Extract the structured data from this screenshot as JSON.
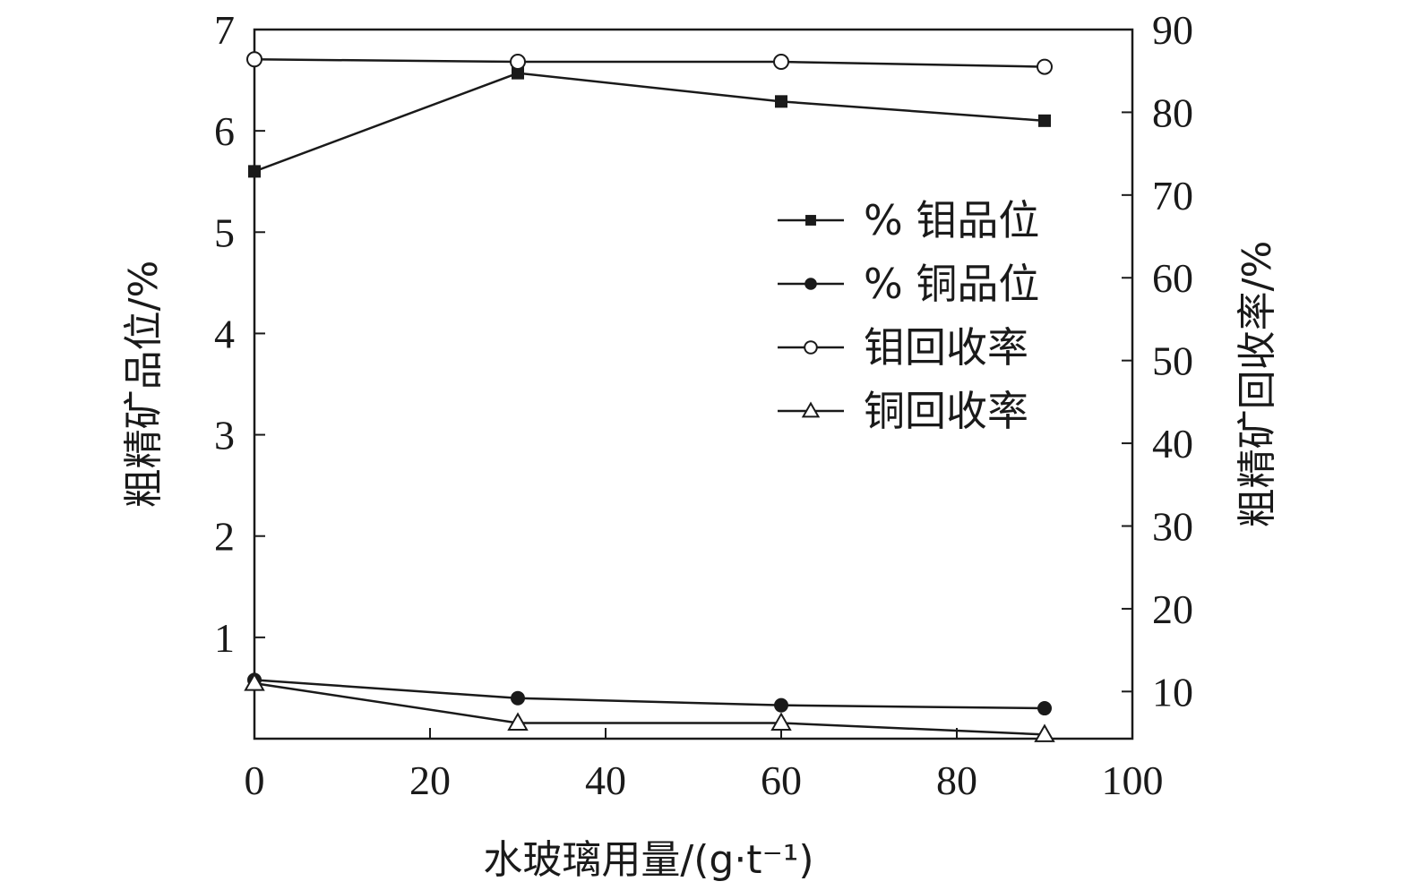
{
  "chart_data": {
    "type": "line",
    "title": "",
    "xlabel": "水玻璃用量/(g·t⁻¹)",
    "ylabel_left": "粗精矿品位/%",
    "ylabel_right": "粗精矿回收率/%",
    "xlim": [
      0,
      100
    ],
    "ylim_left": [
      0,
      7
    ],
    "ylim_right": [
      4.3,
      90
    ],
    "x_ticks": [
      0,
      20,
      40,
      60,
      80,
      100
    ],
    "y_left_ticks": [
      1,
      2,
      3,
      4,
      5,
      6,
      7
    ],
    "y_right_ticks": [
      10,
      20,
      30,
      40,
      50,
      60,
      70,
      80,
      90
    ],
    "grid": false,
    "legend_position": "right",
    "x": [
      0,
      30,
      60,
      90
    ],
    "series": [
      {
        "name": "% 钼品位",
        "axis": "left",
        "marker": "filled-square",
        "values": [
          5.6,
          6.57,
          6.29,
          6.1
        ]
      },
      {
        "name": "% 铜品位",
        "axis": "left",
        "marker": "filled-circle",
        "values": [
          0.58,
          0.4,
          0.33,
          0.3
        ]
      },
      {
        "name": "钼回收率",
        "axis": "right",
        "marker": "open-circle",
        "values": [
          86.4,
          86.1,
          86.1,
          85.5
        ]
      },
      {
        "name": "铜回收率",
        "axis": "right",
        "marker": "open-triangle",
        "values": [
          11.0,
          6.2,
          6.2,
          4.8
        ]
      }
    ]
  }
}
